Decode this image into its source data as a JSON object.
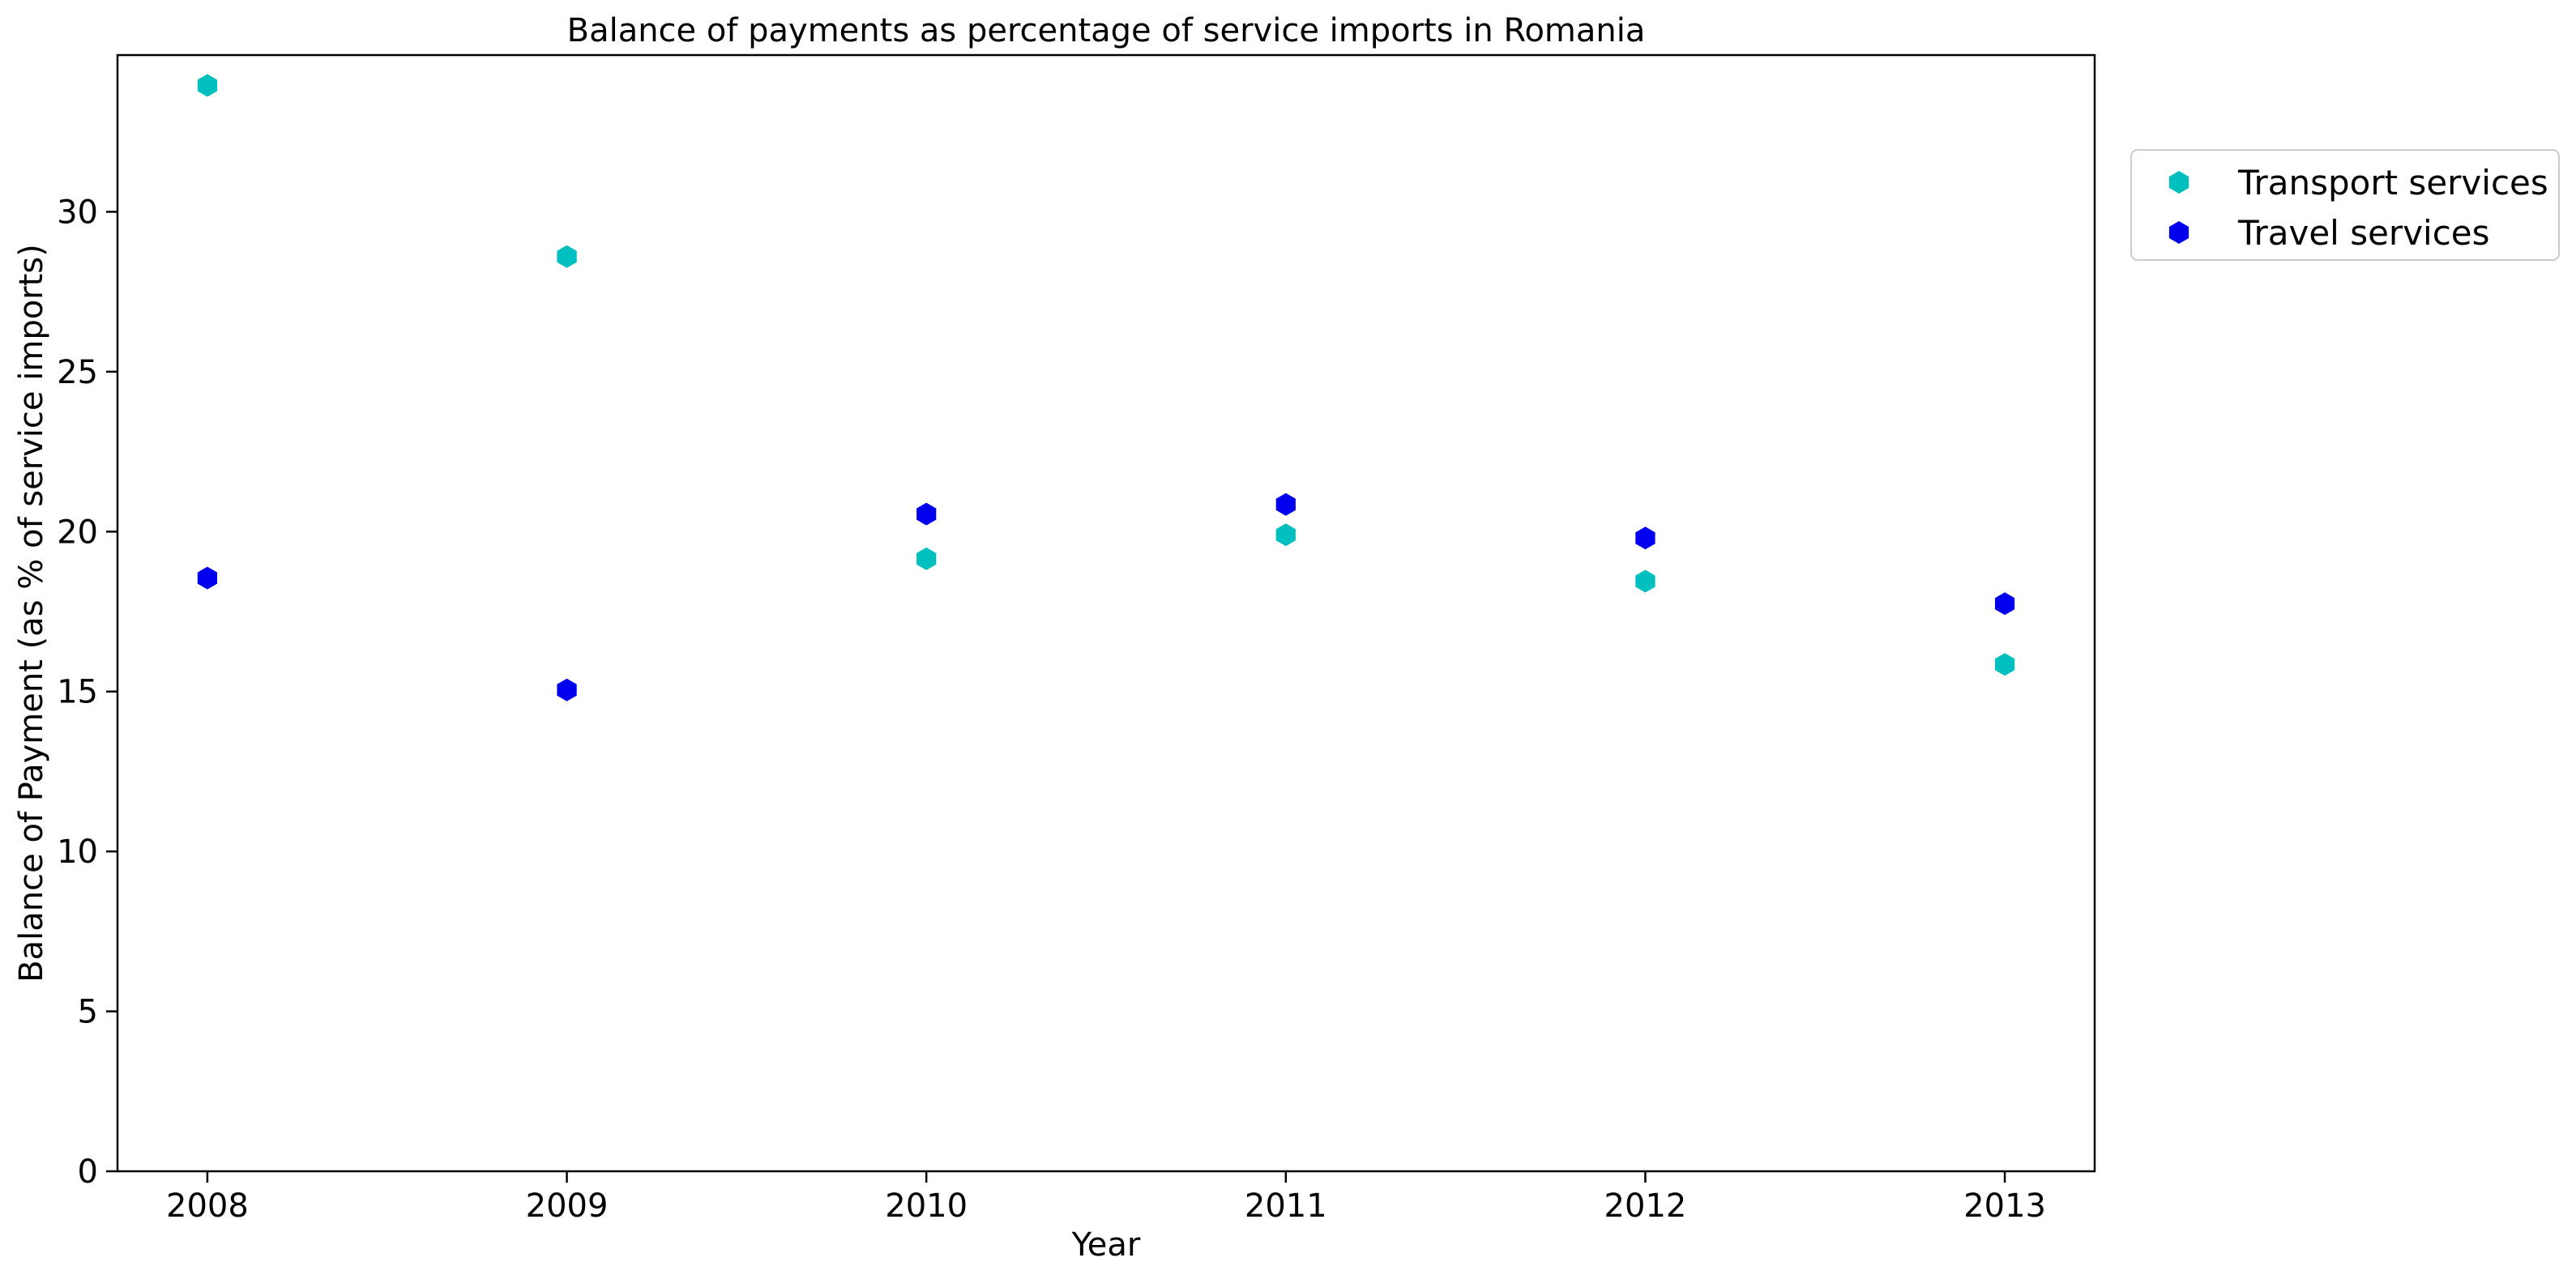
{
  "chart_data": {
    "type": "scatter",
    "title": "Balance of payments as percentage of service imports in Romania",
    "xlabel": "Year",
    "ylabel": "Balance of Payment (as % of service imports)",
    "x": [
      "2008",
      "2009",
      "2010",
      "2011",
      "2012",
      "2013"
    ],
    "xlim": [
      2007.75,
      2013.25
    ],
    "ylim": [
      0,
      34.9
    ],
    "yticks": [
      "0",
      "5",
      "10",
      "15",
      "20",
      "25",
      "30"
    ],
    "grid": false,
    "legend_position": "outside-top-right",
    "marker": "hexagon",
    "series": [
      {
        "name": "Transport services",
        "color": "#00bfbf",
        "values": [
          33.95,
          28.6,
          19.15,
          19.9,
          18.45,
          15.85
        ]
      },
      {
        "name": "Travel services",
        "color": "#0000ee",
        "values": [
          18.55,
          15.05,
          20.55,
          20.85,
          19.8,
          17.75
        ]
      }
    ]
  }
}
